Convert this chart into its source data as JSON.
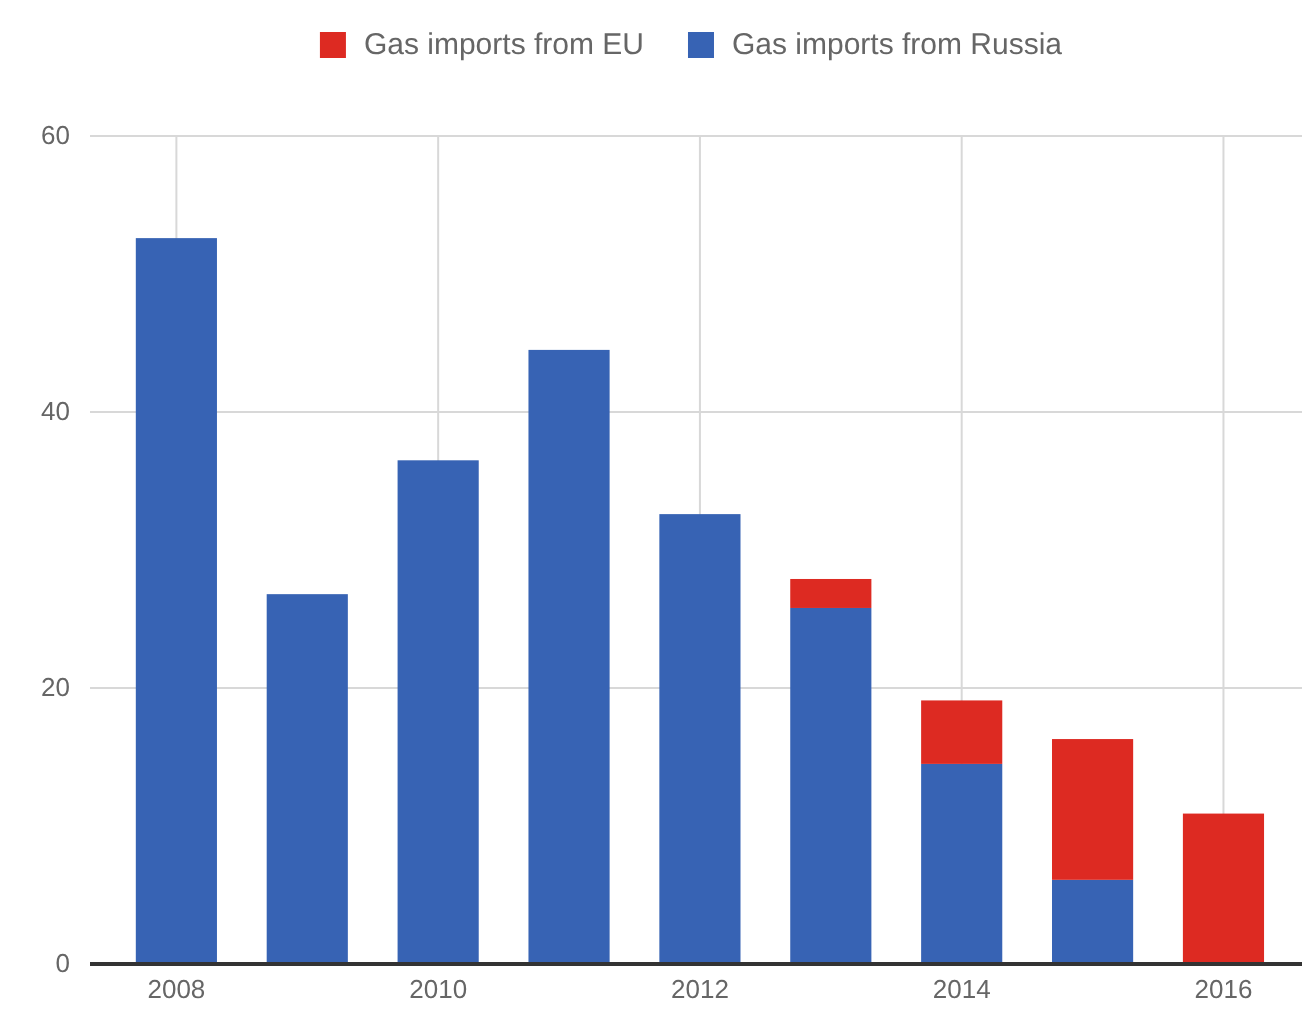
{
  "chart_data": {
    "type": "bar",
    "stacked": true,
    "x": [
      2008,
      2009,
      2010,
      2011,
      2012,
      2013,
      2014,
      2015,
      2016
    ],
    "series": [
      {
        "name": "Gas imports from Russia",
        "color": "#3763b4",
        "values": [
          52.6,
          26.8,
          36.5,
          44.5,
          32.6,
          25.8,
          14.5,
          6.1,
          0
        ]
      },
      {
        "name": "Gas imports from EU",
        "color": "#dd2a22",
        "values": [
          0,
          0,
          0,
          0,
          0,
          2.1,
          4.6,
          10.2,
          10.9
        ]
      }
    ],
    "xlim": [
      2007.34,
      2016.6
    ],
    "xticks": [
      2008,
      2010,
      2012,
      2014,
      2016
    ],
    "ylim": [
      0,
      60
    ],
    "yticks": [
      0,
      20,
      40,
      60
    ],
    "grid": true,
    "legend": "top"
  }
}
